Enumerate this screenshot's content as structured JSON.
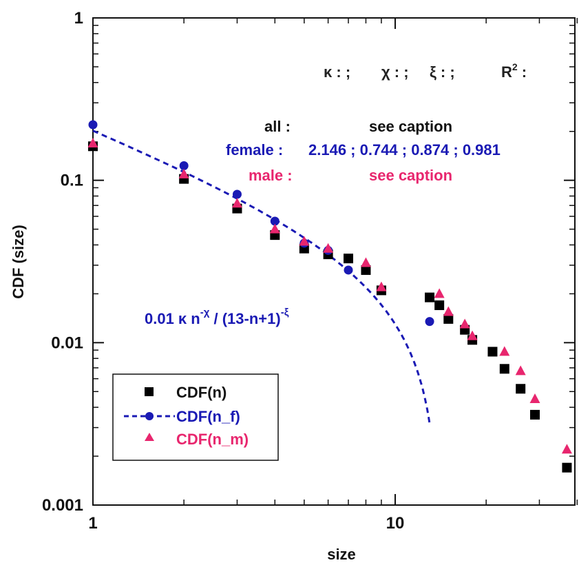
{
  "chart_data": {
    "type": "scatter",
    "xscale": "log",
    "yscale": "log",
    "xlim": [
      1,
      40
    ],
    "ylim": [
      0.001,
      1
    ],
    "xlabel": "size",
    "ylabel": "CDF (size)",
    "x_ticks": [
      {
        "value": 1,
        "label": "1"
      },
      {
        "value": 10,
        "label": "10"
      }
    ],
    "y_ticks": [
      {
        "value": 0.001,
        "label": "0.001"
      },
      {
        "value": 0.01,
        "label": "0.01"
      },
      {
        "value": 0.1,
        "label": "0.1"
      },
      {
        "value": 1,
        "label": "1"
      }
    ],
    "grid": false,
    "legend_position": "bottom-left",
    "colors": {
      "all": "#000000",
      "female": "#1a1ab4",
      "male": "#e8266e"
    },
    "series": [
      {
        "name": "CDF(n)",
        "marker": "square",
        "x": [
          1,
          2,
          3,
          4,
          5,
          6,
          7,
          8,
          9,
          13,
          14,
          15,
          17,
          18,
          21,
          23,
          26,
          29,
          37
        ],
        "y": [
          0.162,
          0.102,
          0.067,
          0.046,
          0.038,
          0.035,
          0.033,
          0.028,
          0.021,
          0.019,
          0.017,
          0.014,
          0.012,
          0.0104,
          0.0088,
          0.0069,
          0.0052,
          0.0036,
          0.0017
        ]
      },
      {
        "name": "CDF(n_f)",
        "marker": "circle",
        "x": [
          1,
          2,
          3,
          4,
          5,
          6,
          7,
          13
        ],
        "y": [
          0.22,
          0.123,
          0.082,
          0.056,
          0.041,
          0.037,
          0.028,
          0.0135
        ]
      },
      {
        "name": "CDF(n_m)",
        "marker": "triangle",
        "x": [
          1,
          2,
          3,
          4,
          5,
          6,
          8,
          9,
          14,
          15,
          17,
          18,
          23,
          26,
          29,
          37
        ],
        "y": [
          0.169,
          0.109,
          0.072,
          0.05,
          0.042,
          0.038,
          0.031,
          0.022,
          0.02,
          0.0155,
          0.013,
          0.011,
          0.0088,
          0.0067,
          0.0045,
          0.0022
        ]
      }
    ],
    "fit": {
      "label": "0.01  κ  n^-χ / (13-n+1)^-ξ",
      "parts": {
        "prefix": "0.01  κ  n",
        "exp1": "-χ",
        "mid": " / (13-n+1)",
        "exp2": "-ξ"
      },
      "kappa": 2.146,
      "chi": 0.744,
      "xi": 0.874,
      "N": 13,
      "x_range": [
        1,
        13
      ]
    },
    "annotations": {
      "header": {
        "kappa": "κ : ;",
        "chi": "χ : ;",
        "xi": "ξ : ;",
        "r2_base": "R",
        "r2_exp": "2",
        "r2_tail": " :"
      },
      "all_row": {
        "label": "all :",
        "value": "see caption"
      },
      "female_row": {
        "label": "female :",
        "value": "2.146 ; 0.744 ; 0.874 ; 0.981"
      },
      "male_row": {
        "label": "male :",
        "value": "see caption"
      }
    },
    "legend": [
      {
        "label": "CDF(n)",
        "marker": "square",
        "color": "#000000"
      },
      {
        "label": "CDF(n_f)",
        "marker": "circle",
        "color": "#1a1ab4",
        "line": "dashed"
      },
      {
        "label": "CDF(n_m)",
        "marker": "triangle",
        "color": "#e8266e"
      }
    ]
  }
}
